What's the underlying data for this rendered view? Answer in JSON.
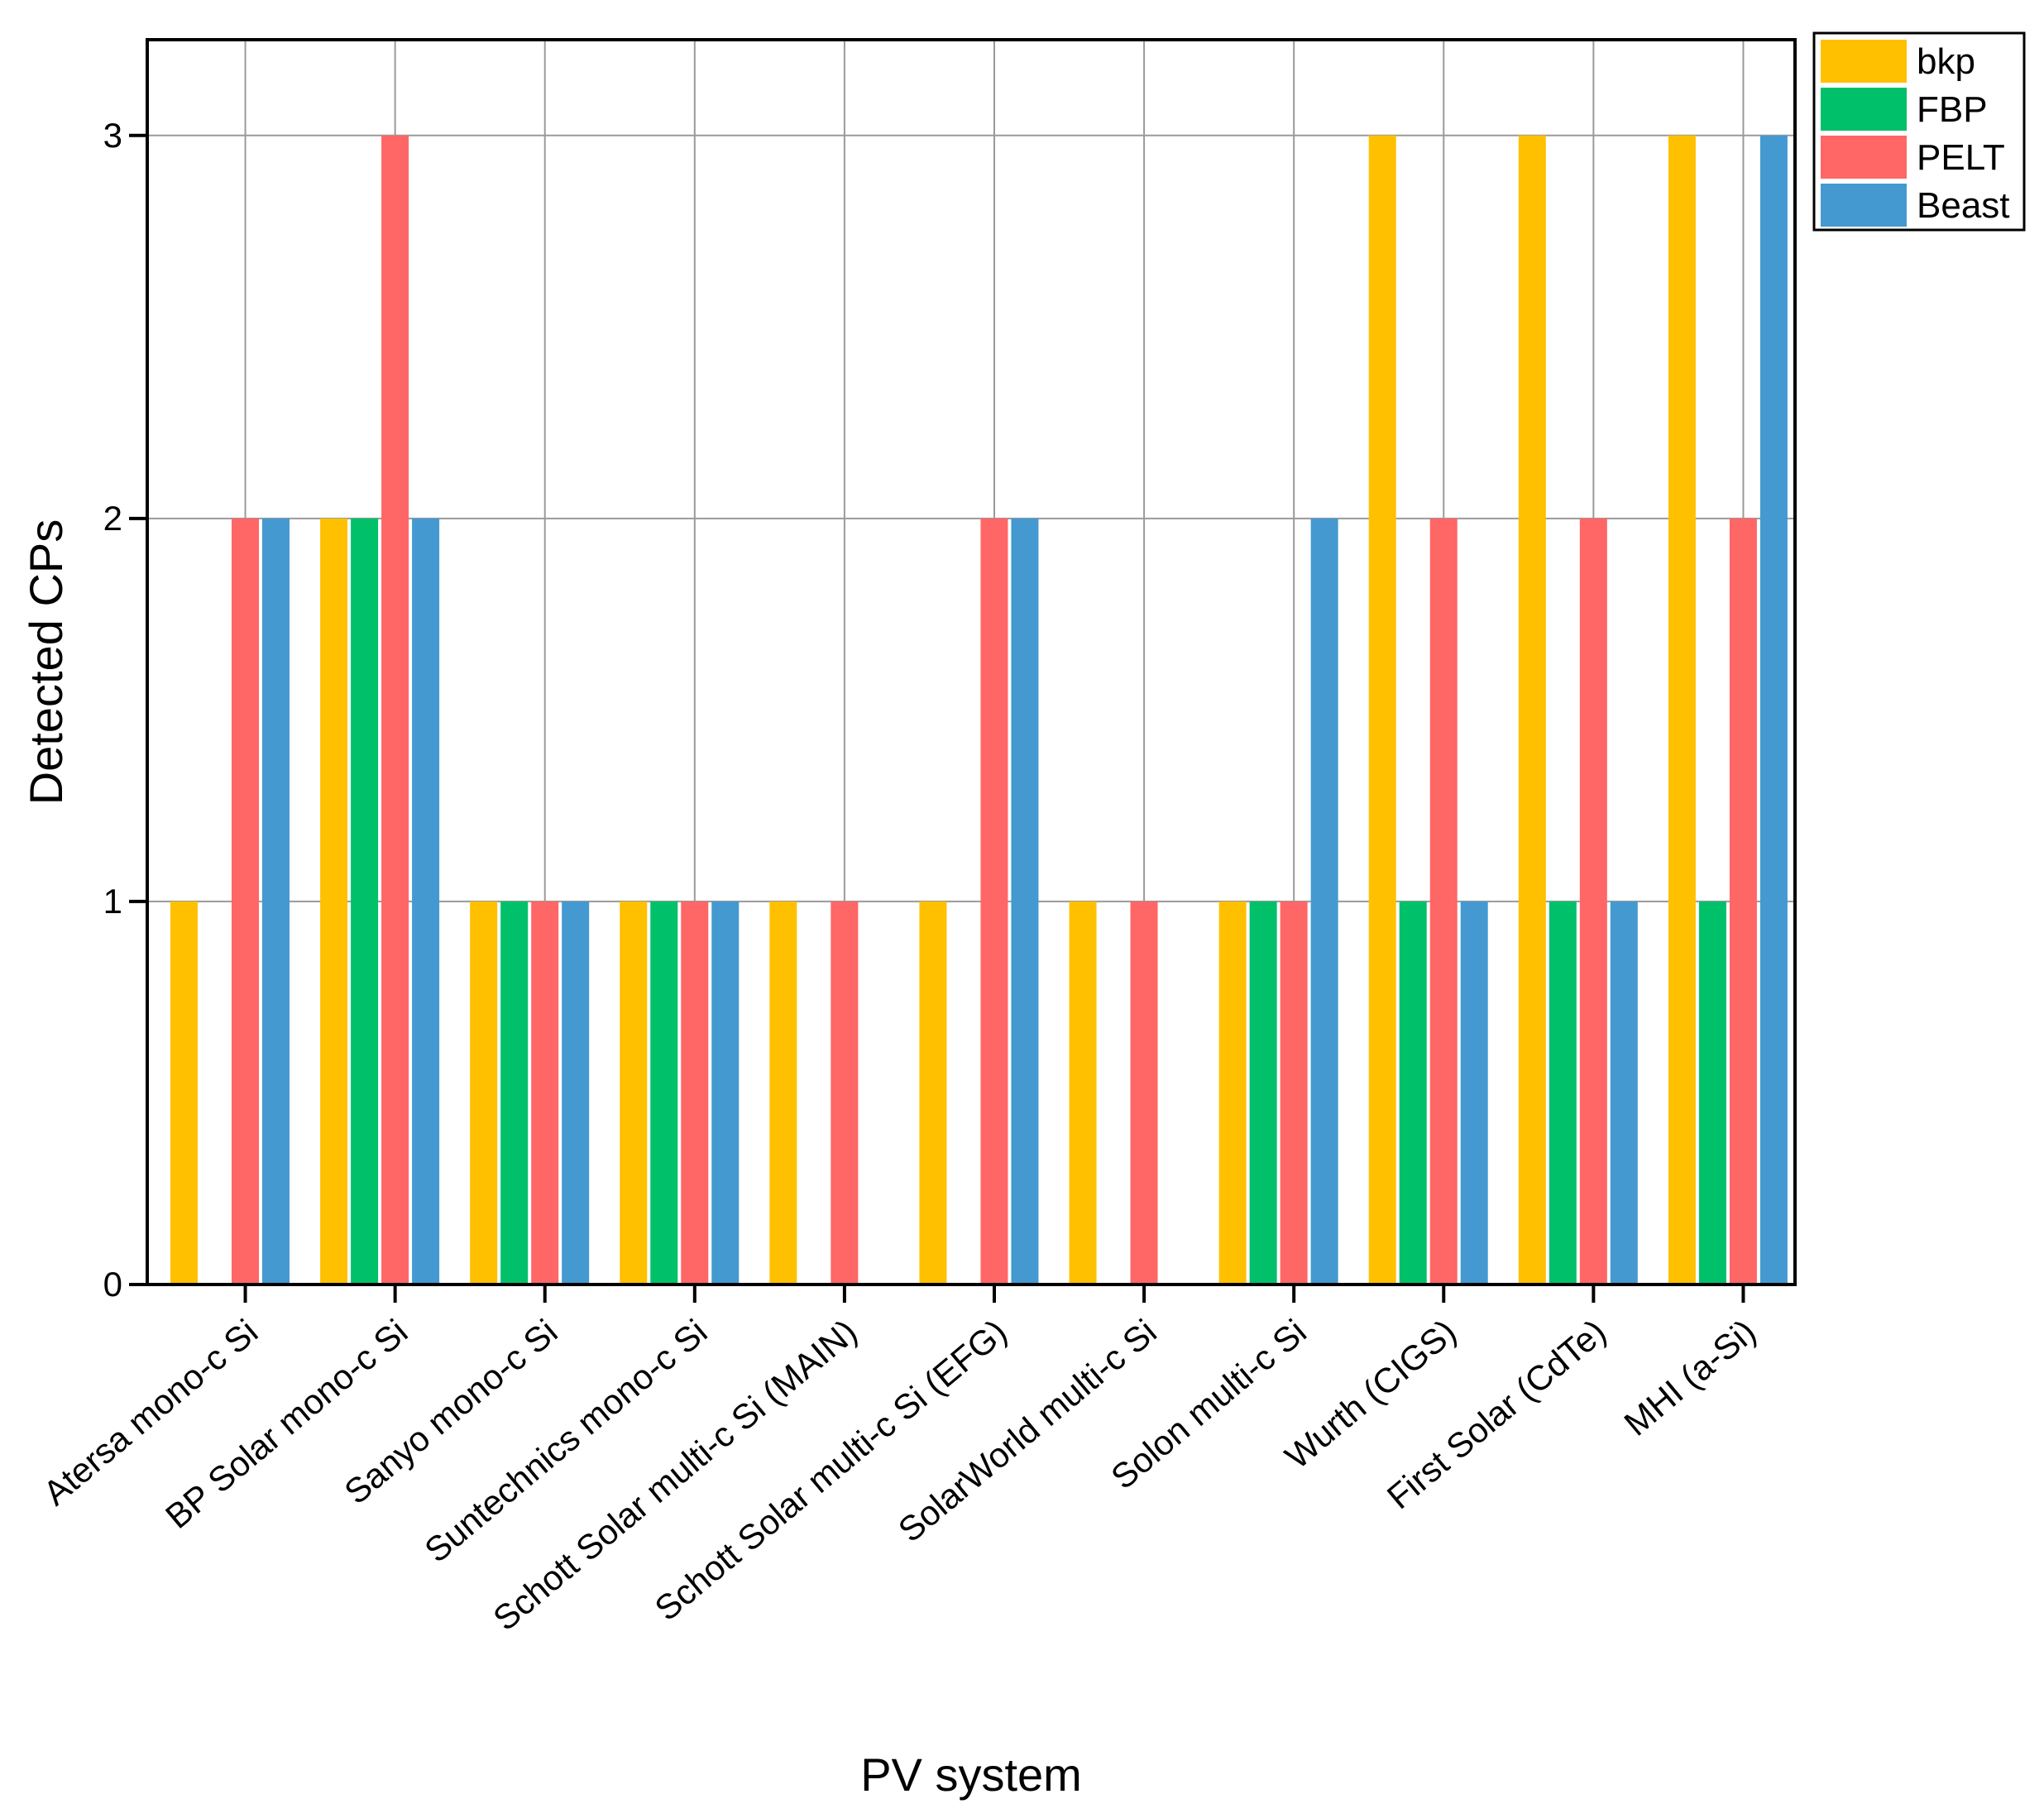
{
  "chart_data": {
    "type": "bar",
    "title": "",
    "xlabel": "PV system",
    "ylabel": "Detected CPs",
    "ylim": [
      0,
      3.25
    ],
    "yticks": [
      0,
      1,
      2,
      3
    ],
    "grid": true,
    "legend_position": "top-right",
    "categories": [
      "Atersa mono-c Si",
      "BP Solar mono-c Si",
      "Sanyo mono-c Si",
      "Suntechnics mono-c Si",
      "Schott Solar multi-c Si (MAIN)",
      "Schott Solar multi-c Si (EFG)",
      "SolarWorld multi-c Si",
      "Solon multi-c Si",
      "Wurth (CIGS)",
      "First Solar (CdTe)",
      "MHI (a-Si)"
    ],
    "series": [
      {
        "name": "bkp",
        "color": "#FFC000",
        "values": [
          1,
          2,
          1,
          1,
          1,
          1,
          1,
          1,
          3,
          3,
          3
        ]
      },
      {
        "name": "FBP",
        "color": "#00C06A",
        "values": [
          0,
          2,
          1,
          1,
          0,
          0,
          0,
          1,
          1,
          1,
          1
        ]
      },
      {
        "name": "PELT",
        "color": "#FF6666",
        "values": [
          2,
          3,
          1,
          1,
          1,
          2,
          1,
          1,
          2,
          2,
          2
        ]
      },
      {
        "name": "Beast",
        "color": "#4499D0",
        "values": [
          2,
          2,
          1,
          1,
          0,
          2,
          0,
          2,
          1,
          1,
          3
        ]
      }
    ]
  }
}
